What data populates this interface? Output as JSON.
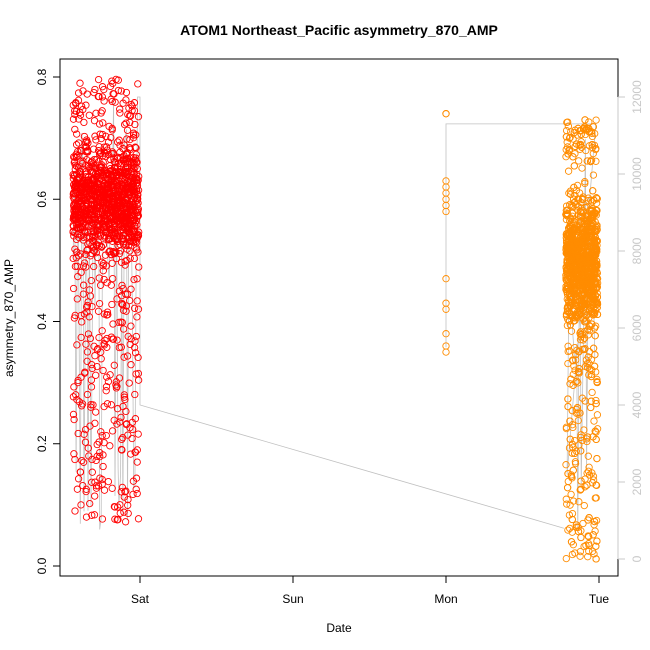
{
  "chart_data": {
    "type": "scatter",
    "title": "ATOM1 Northeast_Pacific asymmetry_870_AMP",
    "xlabel": "Date",
    "ylabel": "asymmetry_870_AMP",
    "x_ticks": [
      "Sat",
      "Sun",
      "Mon",
      "Tue"
    ],
    "y_ticks": [
      "0.0",
      "0.2",
      "0.4",
      "0.6",
      "0.8"
    ],
    "y_right_ticks": [
      "0",
      "2000",
      "4000",
      "6000",
      "8000",
      "10000",
      "12000"
    ],
    "ylim": [
      0,
      0.8
    ],
    "y_right_lim": [
      0,
      12000
    ],
    "grid": false,
    "colors": {
      "series1": "#ff0000",
      "series2": "#ff8c00",
      "altitude_line": "#c0c0c0",
      "right_axis": "#c8c8c8"
    },
    "series": [
      {
        "points": [
          {
            "x": "Fri 13:00",
            "y_range": [
              0.07,
              0.8
            ],
            "y_center": 0.58,
            "n": 1400
          },
          {
            "x": "Fri 20:00",
            "y_range": [
              0.1,
              0.72
            ],
            "y_center": 0.6
          }
        ]
      },
      {
        "points": [
          {
            "x": "Mon 00:00",
            "y_range": [
              0.35,
              0.74
            ],
            "y_center": 0.55,
            "n": 14
          },
          {
            "x": "Mon 19:00 to Mon 23:00",
            "y_range": [
              0.01,
              0.73
            ],
            "y_center": 0.5,
            "n": 1500
          }
        ]
      }
    ],
    "altitude_trace": [
      {
        "x": "Fri 14:00 to Fri 23:30",
        "y_range": [
          0,
          12000
        ]
      },
      {
        "x": "Sat 00:00",
        "y": 4000
      },
      {
        "x": "Mon 18:00",
        "y": 800
      },
      {
        "x": "Mon 00:00",
        "y": 11300
      },
      {
        "x": "Mon 23:00",
        "y": 11300
      }
    ]
  }
}
